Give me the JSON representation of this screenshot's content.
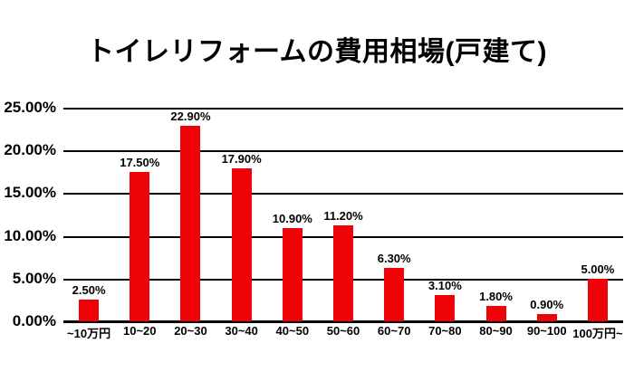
{
  "chart_data": {
    "type": "bar",
    "title": "トイレリフォームの費用相場(戸建て)",
    "categories": [
      "~10万円",
      "10~20",
      "20~30",
      "30~40",
      "40~50",
      "50~60",
      "60~70",
      "70~80",
      "80~90",
      "90~100",
      "100万円~"
    ],
    "values": [
      2.5,
      17.5,
      22.9,
      17.9,
      10.9,
      11.2,
      6.3,
      3.1,
      1.8,
      0.9,
      5.0
    ],
    "value_labels": [
      "2.50%",
      "17.50%",
      "22.90%",
      "17.90%",
      "10.90%",
      "11.20%",
      "6.30%",
      "3.10%",
      "1.80%",
      "0.90%",
      "5.00%"
    ],
    "xlabel": "",
    "ylabel": "",
    "ylim": [
      0,
      25
    ],
    "ytick_step": 5,
    "ytick_labels": [
      "0.00%",
      "5.00%",
      "10.00%",
      "15.00%",
      "20.00%",
      "25.00%"
    ],
    "grid": "horizontal",
    "legend": "none",
    "bar_color": "#ee0309",
    "axis_color": "#000000",
    "text_color": "#000000",
    "background_color": "#ffffff"
  }
}
